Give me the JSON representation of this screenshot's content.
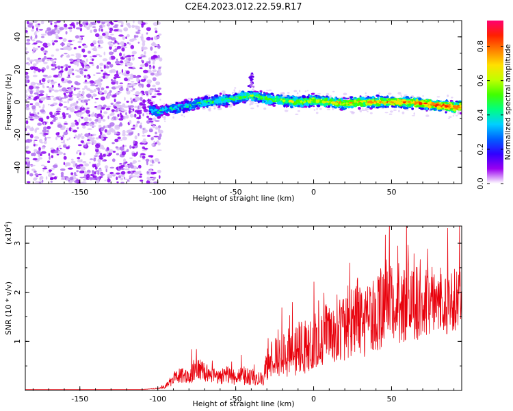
{
  "title": "C2E4.2023.012.22.59.R17",
  "chart_data": [
    {
      "type": "heatmap",
      "xlabel": "Height of straight line (km)",
      "ylabel": "Frequency (Hz)",
      "xlim": [
        -185,
        95
      ],
      "ylim": [
        -50,
        50
      ],
      "xticks": [
        -150,
        -100,
        -50,
        0,
        50
      ],
      "yticks": [
        -40,
        -20,
        0,
        20,
        40
      ],
      "noise_region_end_x": -100,
      "signal_start_x": -105,
      "signal_track": {
        "x": [
          -105,
          -100,
          -95,
          -90,
          -80,
          -70,
          -60,
          -50,
          -40,
          -35,
          -30,
          -20,
          -10,
          0,
          10,
          20,
          30,
          40,
          50,
          60,
          70,
          80,
          90,
          95
        ],
        "y": [
          -4,
          -6,
          -5,
          -4,
          -2,
          0,
          1,
          2,
          4,
          3,
          2,
          1,
          0,
          1,
          0,
          -1,
          0,
          0,
          0,
          0,
          -1,
          -2,
          -3,
          -3
        ]
      },
      "colorbar": {
        "label": "Normalized spectral amplitude",
        "range": [
          0.0,
          0.95
        ],
        "ticks": [
          0.0,
          0.2,
          0.4,
          0.6,
          0.8
        ],
        "tick_labels": [
          "0.0",
          "0.2",
          "0.4",
          "0.6",
          "0.8"
        ],
        "colors": [
          "#ffffff",
          "#9a00f0",
          "#3000ff",
          "#0060ff",
          "#00d0ff",
          "#00ff80",
          "#40ff00",
          "#c0ff00",
          "#ffe000",
          "#ff8000",
          "#ff2000",
          "#ff0070"
        ]
      },
      "grid": false
    },
    {
      "type": "line",
      "xlabel": "Height of straight line (km)",
      "ylabel": "SNR (10 * v/v)",
      "yscale_label": "(x10",
      "yscale_exp": "4",
      "yscale_close": ")",
      "xlim": [
        -185,
        95
      ],
      "ylim": [
        0,
        3.35
      ],
      "xticks": [
        -150,
        -100,
        -50,
        0,
        50
      ],
      "yticks": [
        1,
        2,
        3
      ],
      "color": "#e8000b",
      "x": [
        -185,
        -150,
        -110,
        -100,
        -95,
        -92,
        -88,
        -85,
        -80,
        -75,
        -72,
        -70,
        -65,
        -60,
        -55,
        -50,
        -45,
        -40,
        -35,
        -32,
        -30,
        -28,
        -25,
        -20,
        -15,
        -10,
        -5,
        0,
        5,
        10,
        15,
        20,
        25,
        28,
        30,
        35,
        40,
        45,
        50,
        55,
        60,
        65,
        70,
        75,
        80,
        85,
        90,
        95
      ],
      "y": [
        0.02,
        0.02,
        0.02,
        0.04,
        0.08,
        0.18,
        0.28,
        0.3,
        0.34,
        0.38,
        0.45,
        0.36,
        0.3,
        0.28,
        0.3,
        0.26,
        0.3,
        0.25,
        0.24,
        0.22,
        0.55,
        0.6,
        0.65,
        0.7,
        0.8,
        0.85,
        0.9,
        1.0,
        1.1,
        1.2,
        1.3,
        1.35,
        1.45,
        1.5,
        1.4,
        1.5,
        1.6,
        1.7,
        1.75,
        1.8,
        1.8,
        1.75,
        1.8,
        1.85,
        1.85,
        1.8,
        1.85,
        1.85
      ],
      "spread": [
        0.0,
        0.0,
        0.0,
        0.01,
        0.04,
        0.1,
        0.15,
        0.17,
        0.2,
        0.22,
        0.22,
        0.2,
        0.17,
        0.16,
        0.18,
        0.15,
        0.2,
        0.16,
        0.14,
        0.15,
        0.35,
        0.38,
        0.4,
        0.45,
        0.5,
        0.55,
        0.55,
        0.6,
        0.62,
        0.66,
        0.7,
        0.75,
        0.8,
        0.82,
        0.8,
        0.8,
        0.82,
        0.85,
        0.85,
        0.85,
        0.8,
        0.78,
        0.75,
        0.72,
        0.7,
        0.68,
        0.66,
        0.65
      ],
      "grid": false
    }
  ]
}
